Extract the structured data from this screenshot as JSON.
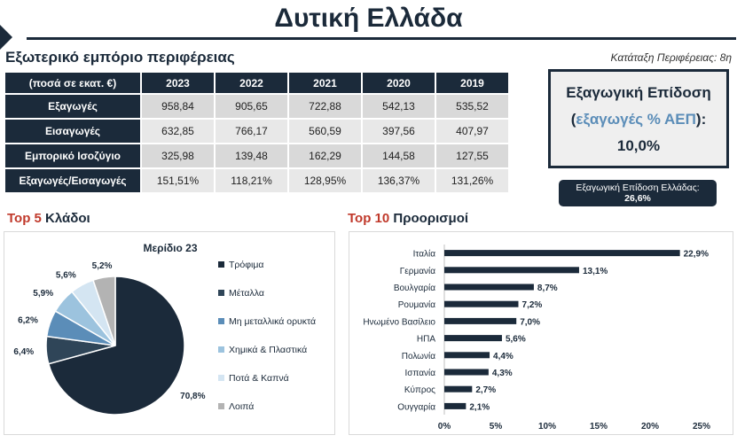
{
  "page": {
    "title": "Δυτική Ελλάδα",
    "subtitle": "Εξωτερικό εμπόριο περιφέρειας",
    "rank": "Κατάταξη Περιφέρειας: 8η"
  },
  "trade_table": {
    "header": [
      "(ποσά σε εκατ. €)",
      "2023",
      "2022",
      "2021",
      "2020",
      "2019"
    ],
    "rows": [
      {
        "label": "Εξαγωγές",
        "values": [
          "958,84",
          "905,65",
          "722,88",
          "542,13",
          "535,52"
        ]
      },
      {
        "label": "Εισαγωγές",
        "values": [
          "632,85",
          "766,17",
          "560,59",
          "397,56",
          "407,97"
        ]
      },
      {
        "label": "Εμπορικό Ισοζύγιο",
        "values": [
          "325,98",
          "139,48",
          "162,29",
          "144,58",
          "127,55"
        ]
      },
      {
        "label": "Εξαγωγές/Εισαγωγές",
        "values": [
          "151,51%",
          "118,21%",
          "128,95%",
          "136,37%",
          "131,26%"
        ]
      }
    ]
  },
  "kpi": {
    "line1": "Εξαγωγική Επίδοση",
    "line2_open": "(",
    "line2_highlight": "εξαγωγές % ΑΕΠ",
    "line2_close": "):",
    "value": "10,0%",
    "badge_line1": "Εξαγωγική Επίδοση Ελλάδας:",
    "badge_line2": "26,6%"
  },
  "sections": {
    "sectors_red": "Top 5",
    "sectors_rest": " Κλάδοι",
    "destinations_red": "Top 10",
    "destinations_rest": " Προορισμοί"
  },
  "colors": {
    "navy": "#1b2a3a",
    "slate": "#2f4558",
    "steel": "#5b8db8",
    "lightblue": "#9cc3de",
    "paleblue": "#d4e5f2",
    "grey": "#b3b3b3",
    "accent_red": "#c0392b"
  },
  "chart_data": [
    {
      "type": "pie",
      "title": "Μερίδιο 23",
      "categories": [
        "Τρόφιμα",
        "Μέταλλα",
        "Μη μεταλλικά ορυκτά",
        "Χημικά & Πλαστικά",
        "Ποτά & Καπνά",
        "Λοιπά"
      ],
      "values": [
        70.8,
        6.4,
        6.2,
        5.9,
        5.6,
        5.2
      ],
      "labels": [
        "70,8%",
        "6,4%",
        "6,2%",
        "5,9%",
        "5,6%",
        "5,2%"
      ],
      "colors": [
        "#1b2a3a",
        "#2f4558",
        "#5b8db8",
        "#9cc3de",
        "#d4e5f2",
        "#b3b3b3"
      ],
      "legend": "right"
    },
    {
      "type": "bar",
      "orientation": "horizontal",
      "categories": [
        "Ιταλία",
        "Γερμανία",
        "Βουλγαρία",
        "Ρουμανία",
        "Ηνωμένο Βασίλειο",
        "ΗΠΑ",
        "Πολωνία",
        "Ισπανία",
        "Κύπρος",
        "Ουγγαρία"
      ],
      "values": [
        22.9,
        13.1,
        8.7,
        7.2,
        7.0,
        5.6,
        4.4,
        4.3,
        2.7,
        2.1
      ],
      "labels": [
        "22,9%",
        "13,1%",
        "8,7%",
        "7,2%",
        "7,0%",
        "5,6%",
        "4,4%",
        "4,3%",
        "2,7%",
        "2,1%"
      ],
      "xlim": [
        0,
        25
      ],
      "xticks": [
        "0%",
        "5%",
        "10%",
        "15%",
        "20%",
        "25%"
      ],
      "color": "#1b2a3a",
      "grid": false
    }
  ]
}
